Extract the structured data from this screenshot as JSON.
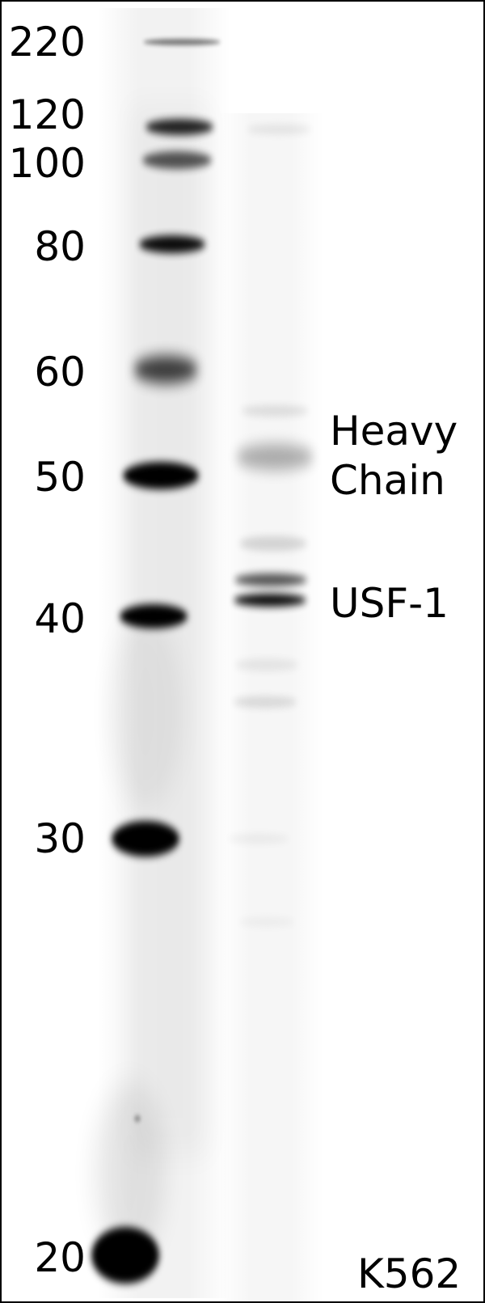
{
  "mw_markers": [
    "220",
    "120",
    "100",
    "80",
    "60",
    "50",
    "40",
    "30",
    "20"
  ],
  "annotations": {
    "heavy_line1": "Heavy",
    "heavy_line2": "Chain",
    "usf": "USF-1"
  },
  "cell_line": "K562",
  "colors": {
    "band": "#000000",
    "background": "#ffffff",
    "text": "#000000"
  }
}
